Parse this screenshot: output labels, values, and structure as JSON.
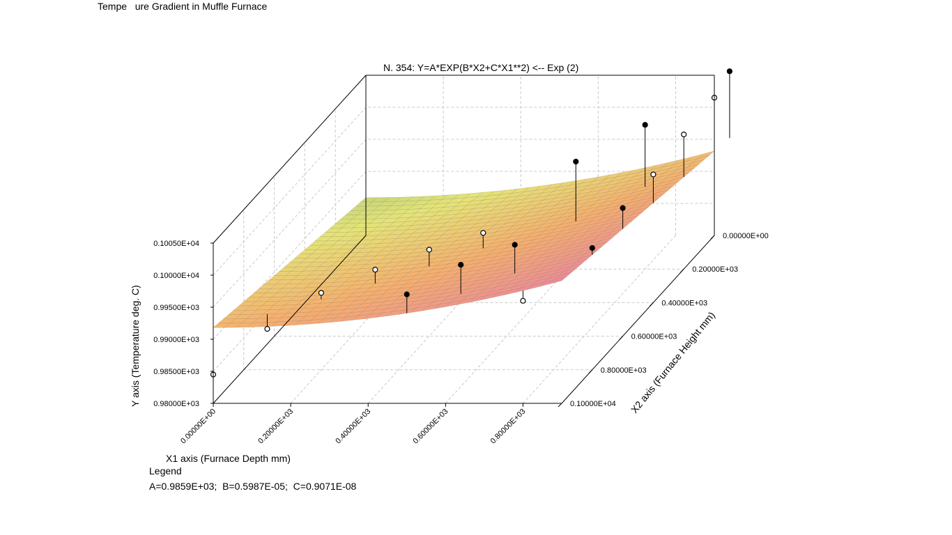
{
  "window_title": "Tempe   ure Gradient in Muffle Furnace",
  "legend": {
    "title": "Legend",
    "text": "A=0.9859E+03;  B=0.5987E-05;  C=0.9071E-08"
  },
  "chart_data": {
    "type": "surface3d",
    "title": "N. 354:   Y=A*EXP(B*X2+C*X1**2) <-- Exp (2)",
    "xlabel": "X1 axis (Furnace Depth mm)",
    "x2label": "X2 axis (Furnace Height mm)",
    "ylabel": "Y axis (Temperature deg. C)",
    "x1_range": [
      0,
      900
    ],
    "x2_range": [
      0,
      1000
    ],
    "y_range": [
      980,
      1005
    ],
    "x1_ticks": [
      "0.00000E+00",
      "0.20000E+03",
      "0.40000E+03",
      "0.60000E+03",
      "0.80000E+03"
    ],
    "x2_ticks": [
      "0.00000E+00",
      "0.20000E+03",
      "0.40000E+03",
      "0.60000E+03",
      "0.80000E+03",
      "0.10000E+04"
    ],
    "y_ticks": [
      "0.98000E+03",
      "0.98500E+03",
      "0.99000E+03",
      "0.99500E+03",
      "0.10000E+04",
      "0.10050E+04"
    ],
    "grid": true,
    "model": {
      "A": 985.9,
      "B": 5.987e-06,
      "C": 9.071e-09
    },
    "points": [
      {
        "x1": 0,
        "x2": 1000,
        "y": 984.5,
        "above": false
      },
      {
        "x1": 100,
        "x2": 900,
        "y": 989.0,
        "above": false
      },
      {
        "x1": 200,
        "x2": 800,
        "y": 992.0,
        "above": false
      },
      {
        "x1": 300,
        "x2": 700,
        "y": 993.0,
        "above": false
      },
      {
        "x1": 400,
        "x2": 600,
        "y": 993.5,
        "above": false
      },
      {
        "x1": 500,
        "x2": 500,
        "y": 993.5,
        "above": false
      },
      {
        "x1": 500,
        "x2": 1000,
        "y": 997.0,
        "above": true
      },
      {
        "x1": 600,
        "x2": 900,
        "y": 999.0,
        "above": true
      },
      {
        "x1": 700,
        "x2": 800,
        "y": 999.5,
        "above": true
      },
      {
        "x1": 800,
        "x2": 1000,
        "y": 996.0,
        "above": false
      },
      {
        "x1": 900,
        "x2": 800,
        "y": 999.0,
        "above": true
      },
      {
        "x1": 900,
        "x2": 600,
        "y": 1000.0,
        "above": true
      },
      {
        "x1": 900,
        "x2": 400,
        "y": 1000.0,
        "above": false
      },
      {
        "x1": 900,
        "x2": 200,
        "y": 1001.0,
        "above": false
      },
      {
        "x1": 900,
        "x2": 0,
        "y": 1001.5,
        "above": false
      },
      {
        "x1": 700,
        "x2": 400,
        "y": 1002.0,
        "above": true
      },
      {
        "x1": 800,
        "x2": 200,
        "y": 1002.5,
        "above": true
      },
      {
        "x1": 900,
        "x2": -100,
        "y": 1003.0,
        "above": true
      }
    ]
  }
}
